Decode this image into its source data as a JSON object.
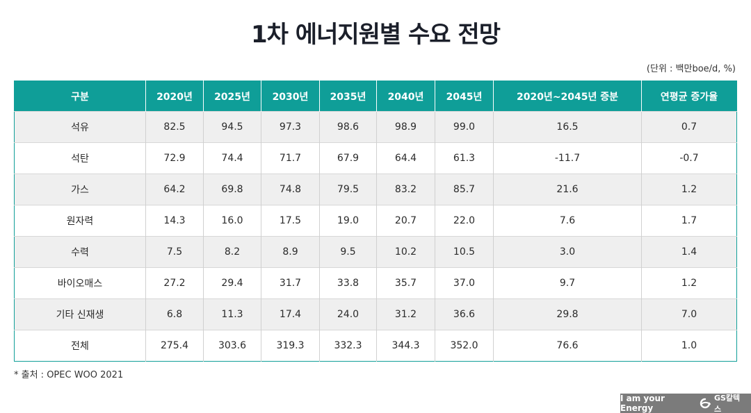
{
  "title": "1차 에너지원별 수요 전망",
  "unit_note": "(단위 : 백만boe/d, %)",
  "table": {
    "headers": [
      "구분",
      "2020년",
      "2025년",
      "2030년",
      "2035년",
      "2040년",
      "2045년",
      "2020년~2045년 증분",
      "연평균 증가율"
    ],
    "rows": [
      [
        "석유",
        "82.5",
        "94.5",
        "97.3",
        "98.6",
        "98.9",
        "99.0",
        "16.5",
        "0.7"
      ],
      [
        "석탄",
        "72.9",
        "74.4",
        "71.7",
        "67.9",
        "64.4",
        "61.3",
        "-11.7",
        "-0.7"
      ],
      [
        "가스",
        "64.2",
        "69.8",
        "74.8",
        "79.5",
        "83.2",
        "85.7",
        "21.6",
        "1.2"
      ],
      [
        "원자력",
        "14.3",
        "16.0",
        "17.5",
        "19.0",
        "20.7",
        "22.0",
        "7.6",
        "1.7"
      ],
      [
        "수력",
        "7.5",
        "8.2",
        "8.9",
        "9.5",
        "10.2",
        "10.5",
        "3.0",
        "1.4"
      ],
      [
        "바이오매스",
        "27.2",
        "29.4",
        "31.7",
        "33.8",
        "35.7",
        "37.0",
        "9.7",
        "1.2"
      ],
      [
        "기타 신재생",
        "6.8",
        "11.3",
        "17.4",
        "24.0",
        "31.2",
        "36.6",
        "29.8",
        "7.0"
      ],
      [
        "전체",
        "275.4",
        "303.6",
        "319.3",
        "332.3",
        "344.3",
        "352.0",
        "76.6",
        "1.0"
      ]
    ]
  },
  "source": "* 출처 : OPEC WOO 2021",
  "brand": {
    "tagline": "I am your Energy",
    "logo": "GS칼텍스",
    "logo_icon": "gs-caltex-logo-icon"
  },
  "colors": {
    "header_bg": "#0f9e98",
    "stripe_bg": "#efefef",
    "brand_bg": "#7b7b7b"
  }
}
